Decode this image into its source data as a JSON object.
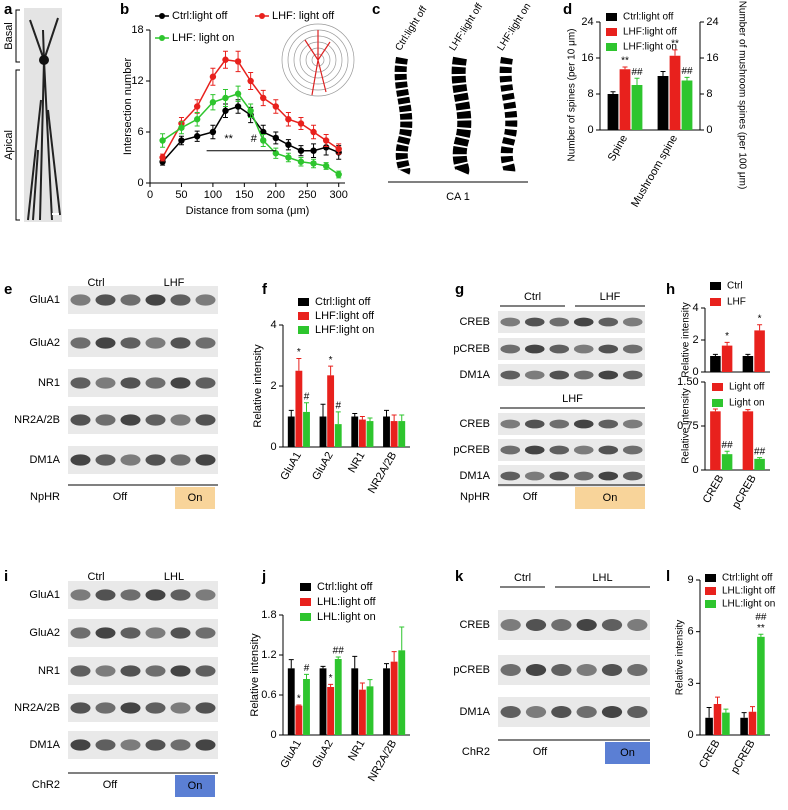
{
  "panel_letters": [
    "a",
    "b",
    "c",
    "d",
    "e",
    "f",
    "g",
    "h",
    "i",
    "j",
    "k",
    "l"
  ],
  "panel_a": {
    "basal": "Basal",
    "apical": "Apical"
  },
  "panel_c": {
    "images": [
      "Ctrl:light off",
      "LHF:light off",
      "LHF:light on"
    ],
    "region": "CA 1"
  },
  "blots": [
    {
      "groups": [
        {
          "header": [
            "Ctrl",
            "LHF"
          ],
          "rows": [
            "GluA1",
            "GluA2",
            "NR1",
            "NR2A/2B",
            "DM1A"
          ]
        }
      ],
      "condition": "NpHR",
      "off": "Off",
      "on": "On"
    },
    {
      "groups": [
        {
          "header": [
            "Ctrl",
            "LHF"
          ],
          "rows": [
            "CREB",
            "pCREB",
            "DM1A"
          ]
        },
        {
          "header": [
            "LHF"
          ],
          "rows": [
            "CREB",
            "pCREB",
            "DM1A"
          ]
        }
      ],
      "condition": "NpHR",
      "off": "Off",
      "on": "On"
    },
    {
      "groups": [
        {
          "header": [
            "Ctrl",
            "LHL"
          ],
          "rows": [
            "GluA1",
            "GluA2",
            "NR1",
            "NR2A/2B",
            "DM1A"
          ]
        }
      ],
      "condition": "ChR2",
      "off": "Off",
      "on": "On"
    },
    {
      "groups": [
        {
          "header": [
            "Ctrl",
            "LHL"
          ],
          "rows": [
            "CREB",
            "pCREB",
            "DM1A"
          ]
        }
      ],
      "condition": "ChR2",
      "off": "Off",
      "on": "On"
    }
  ],
  "chart_data": [
    {
      "type": "line",
      "xlabel": "Distance from soma (μm)",
      "ylabel": "Intersection number",
      "x": [
        20,
        50,
        75,
        100,
        120,
        140,
        160,
        180,
        200,
        220,
        240,
        260,
        280,
        300
      ],
      "xlim": [
        0,
        310
      ],
      "xticks": [
        0,
        50,
        100,
        150,
        200,
        250,
        300
      ],
      "ylim": [
        0,
        18
      ],
      "yticks": [
        0,
        6,
        12,
        18
      ],
      "legend": "top",
      "series": [
        {
          "name": "Ctrl:light off",
          "color": "#000000",
          "values": [
            2.5,
            5,
            5.5,
            6,
            8.5,
            9,
            8,
            6,
            5.3,
            4.5,
            3.8,
            3.8,
            4.2,
            3.6
          ],
          "errors": [
            0.4,
            0.5,
            0.6,
            0.8,
            0.8,
            0.8,
            0.9,
            0.8,
            0.7,
            0.6,
            0.6,
            0.8,
            0.9,
            0.8
          ]
        },
        {
          "name": "LHF: light off",
          "color": "#e8211d",
          "values": [
            3,
            7,
            9,
            12.5,
            14.5,
            14.3,
            12,
            10,
            9,
            7.5,
            7,
            6,
            5,
            4
          ],
          "errors": [
            0.4,
            0.7,
            0.8,
            1,
            1,
            1.2,
            1,
            0.9,
            0.8,
            0.8,
            0.7,
            0.8,
            0.7,
            0.6
          ]
        },
        {
          "name": "LHF: light on",
          "color": "#2ec52e",
          "values": [
            5,
            6.5,
            7.5,
            9.5,
            10,
            10.5,
            8.5,
            5,
            3.5,
            3,
            2.5,
            2.3,
            2,
            1
          ],
          "errors": [
            0.8,
            0.7,
            0.8,
            0.9,
            1,
            0.9,
            0.8,
            0.7,
            0.6,
            0.5,
            0.5,
            0.5,
            0.4,
            0.4
          ]
        }
      ],
      "bracket": {
        "x": [
          90,
          200
        ],
        "y": 3.8
      },
      "annotations": [
        {
          "text": "**",
          "x": 125,
          "y": 4.7
        },
        {
          "text": "#",
          "x": 165,
          "y": 4.7
        }
      ]
    },
    {
      "type": "bar",
      "ylabel": "Number of spines (per 10 μm)",
      "y2label": "Number of mushroom spines (per 100 μm)",
      "categories": [
        "Spine",
        "Mushroom spine"
      ],
      "ylim": [
        0,
        24
      ],
      "yticks": [
        0,
        8,
        16,
        24
      ],
      "y2lim": [
        0,
        24
      ],
      "y2ticks": [
        0,
        8,
        16,
        24
      ],
      "legend": "upper left",
      "series": [
        {
          "name": "Ctrl:light off",
          "color": "#000000",
          "values": [
            8,
            12
          ],
          "errors": [
            0.5,
            1
          ]
        },
        {
          "name": "LHF:light off",
          "color": "#e8211d",
          "values": [
            13.5,
            16.5
          ],
          "errors": [
            0.5,
            1.3
          ]
        },
        {
          "name": "LHF:light on",
          "color": "#2ec52e",
          "values": [
            10,
            11
          ],
          "errors": [
            1.5,
            0.7
          ]
        }
      ],
      "annotations": [
        {
          "text": "**",
          "series": 1,
          "category": 0
        },
        {
          "text": "##",
          "series": 2,
          "category": 0
        },
        {
          "text": "**",
          "series": 1,
          "category": 1
        },
        {
          "text": "##",
          "series": 2,
          "category": 1
        }
      ]
    },
    {
      "type": "bar",
      "ylabel": "Relative intensity",
      "categories": [
        "GluA1",
        "GluA2",
        "NR1",
        "NR2A/2B"
      ],
      "ylim": [
        0,
        4
      ],
      "yticks": [
        0,
        2,
        4
      ],
      "legend": "upper left",
      "series": [
        {
          "name": "Ctrl:light off",
          "color": "#000000",
          "values": [
            1,
            1,
            1,
            1
          ],
          "errors": [
            0.2,
            0.4,
            0.1,
            0.2
          ]
        },
        {
          "name": "LHF:light off",
          "color": "#e8211d",
          "values": [
            2.5,
            2.35,
            0.9,
            0.85
          ],
          "errors": [
            0.4,
            0.3,
            0.1,
            0.2
          ]
        },
        {
          "name": "LHF:light on",
          "color": "#2ec52e",
          "values": [
            1.15,
            0.75,
            0.85,
            0.85
          ],
          "errors": [
            0.3,
            0.4,
            0.1,
            0.2
          ]
        }
      ],
      "annotations": [
        {
          "text": "*",
          "series": 1,
          "category": 0
        },
        {
          "text": "#",
          "series": 2,
          "category": 0
        },
        {
          "text": "*",
          "series": 1,
          "category": 1
        },
        {
          "text": "#",
          "series": 2,
          "category": 1
        }
      ]
    },
    {
      "type": "bar",
      "ylabel": "Relative intensity",
      "ylim": [
        0,
        4
      ],
      "yticks": [
        0,
        2,
        4
      ],
      "legend": "upper left",
      "series": [
        {
          "name": "Ctrl",
          "color": "#000000",
          "values": [
            1,
            1
          ],
          "errors": [
            0.1,
            0.1
          ]
        },
        {
          "name": "LHF",
          "color": "#e8211d",
          "values": [
            1.65,
            2.6
          ],
          "errors": [
            0.2,
            0.35
          ]
        }
      ],
      "annotations": [
        {
          "text": "*",
          "series": 1,
          "category": 0
        },
        {
          "text": "*",
          "series": 1,
          "category": 1
        }
      ]
    },
    {
      "type": "bar",
      "ylabel": "Relative intensity",
      "categories": [
        "CREB",
        "pCREB"
      ],
      "ylim": [
        0,
        1.5
      ],
      "yticks": [
        0,
        0.75,
        {
          "value": 1.5,
          "label": "1.50"
        }
      ],
      "legend": "upper left",
      "series": [
        {
          "name": "Light off",
          "color": "#e8211d",
          "values": [
            1,
            1
          ],
          "errors": [
            0.04,
            0.03
          ]
        },
        {
          "name": "Light on",
          "color": "#2ec52e",
          "values": [
            0.27,
            0.19
          ],
          "errors": [
            0.05,
            0.02
          ]
        }
      ],
      "annotations": [
        {
          "text": "##",
          "series": 1,
          "category": 0
        },
        {
          "text": "##",
          "series": 1,
          "category": 1
        }
      ]
    },
    {
      "type": "bar",
      "ylabel": "Relative intensity",
      "categories": [
        "GluA1",
        "GluA2",
        "NR1",
        "NR2A/2B"
      ],
      "ylim": [
        0,
        1.8
      ],
      "yticks": [
        0,
        0.6,
        1.2,
        1.8
      ],
      "legend": "upper left",
      "series": [
        {
          "name": "Ctrl:light off",
          "color": "#000000",
          "values": [
            1,
            1,
            1,
            1
          ],
          "errors": [
            0.13,
            0.03,
            0.18,
            0.07
          ]
        },
        {
          "name": "LHL:light off",
          "color": "#e8211d",
          "values": [
            0.44,
            0.72,
            0.68,
            1.1
          ],
          "errors": [
            0.01,
            0.04,
            0.1,
            0.15
          ]
        },
        {
          "name": "LHL:light on",
          "color": "#2ec52e",
          "values": [
            0.84,
            1.14,
            0.73,
            1.27
          ],
          "errors": [
            0.07,
            0.03,
            0.1,
            0.35
          ]
        }
      ],
      "annotations": [
        {
          "text": "*",
          "series": 1,
          "category": 0
        },
        {
          "text": "#",
          "series": 2,
          "category": 0
        },
        {
          "text": "*",
          "series": 1,
          "category": 1
        },
        {
          "text": "##",
          "series": 2,
          "category": 1
        }
      ]
    },
    {
      "type": "bar",
      "ylabel": "Relative intensity",
      "categories": [
        "CREB",
        "pCREB"
      ],
      "ylim": [
        0,
        9
      ],
      "yticks": [
        0,
        3,
        6,
        9
      ],
      "legend": "upper left",
      "series": [
        {
          "name": "Ctrl:light off",
          "color": "#000000",
          "values": [
            1,
            1
          ],
          "errors": [
            0.6,
            0.3
          ]
        },
        {
          "name": "LHL:light off",
          "color": "#e8211d",
          "values": [
            1.8,
            1.35
          ],
          "errors": [
            0.4,
            0.3
          ]
        },
        {
          "name": "LHL:light on",
          "color": "#2ec52e",
          "values": [
            1.3,
            5.7
          ],
          "errors": [
            0.2,
            0.15
          ]
        }
      ],
      "annotations": [
        {
          "text": "**",
          "series": 2,
          "category": 1
        },
        {
          "text": "##",
          "series": 2,
          "category": 1
        }
      ]
    }
  ]
}
